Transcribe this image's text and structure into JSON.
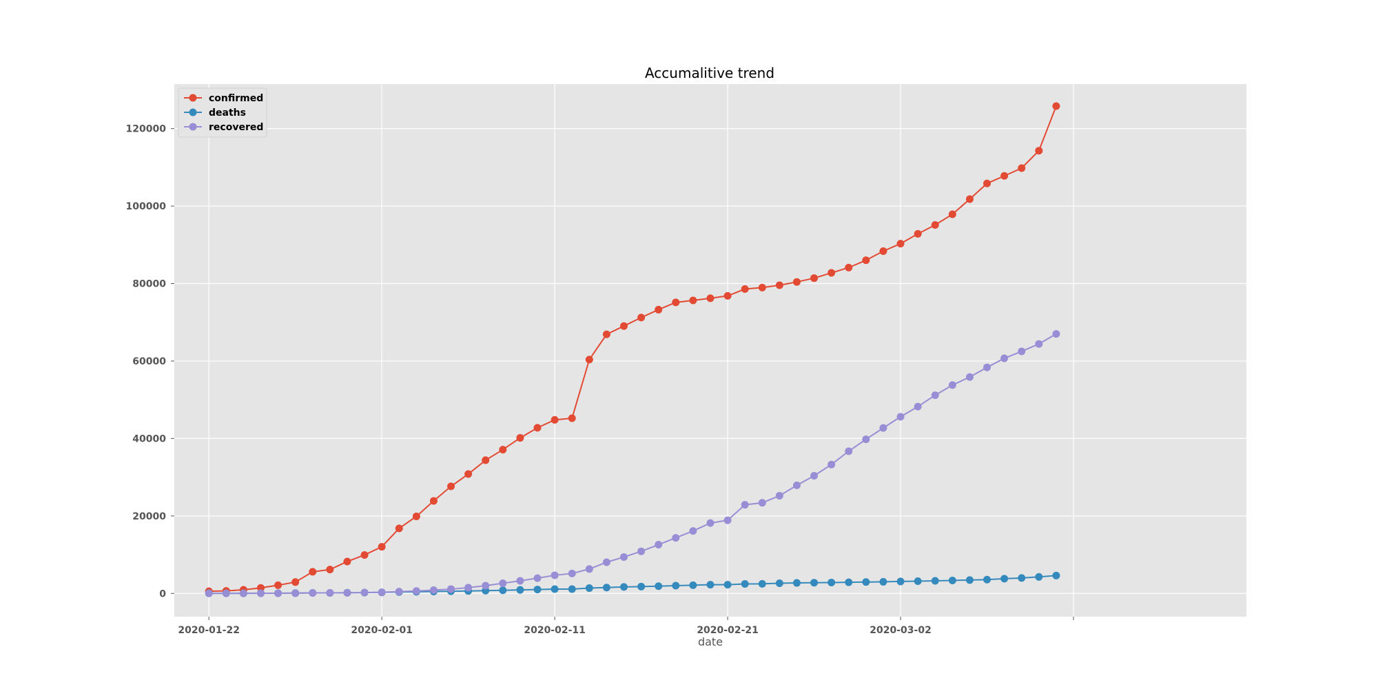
{
  "chart_data": {
    "type": "line",
    "title": "Accumalitive trend",
    "xlabel": "date",
    "ylabel": "",
    "x_start": "2020-01-22",
    "x_ticks": [
      "2020-01-22",
      "2020-02-01",
      "2020-02-11",
      "2020-02-21",
      "2020-03-02"
    ],
    "y_ticks": [
      0,
      20000,
      40000,
      60000,
      80000,
      100000,
      120000
    ],
    "xlim": [
      "2020-01-20",
      "2020-03-22"
    ],
    "ylim": [
      -6000,
      131500
    ],
    "grid": true,
    "legend_position": "top-left",
    "x": [
      "2020-01-22",
      "2020-01-23",
      "2020-01-24",
      "2020-01-25",
      "2020-01-26",
      "2020-01-27",
      "2020-01-28",
      "2020-01-29",
      "2020-01-30",
      "2020-01-31",
      "2020-02-01",
      "2020-02-02",
      "2020-02-03",
      "2020-02-04",
      "2020-02-05",
      "2020-02-06",
      "2020-02-07",
      "2020-02-08",
      "2020-02-09",
      "2020-02-10",
      "2020-02-11",
      "2020-02-12",
      "2020-02-13",
      "2020-02-14",
      "2020-02-15",
      "2020-02-16",
      "2020-02-17",
      "2020-02-18",
      "2020-02-19",
      "2020-02-20",
      "2020-02-21",
      "2020-02-22",
      "2020-02-23",
      "2020-02-24",
      "2020-02-25",
      "2020-02-26",
      "2020-02-27",
      "2020-02-28",
      "2020-02-29",
      "2020-03-01",
      "2020-03-02",
      "2020-03-03",
      "2020-03-04",
      "2020-03-05",
      "2020-03-06",
      "2020-03-07",
      "2020-03-08",
      "2020-03-09",
      "2020-03-10",
      "2020-03-11"
    ],
    "series": [
      {
        "name": "confirmed",
        "color": "#E24A33",
        "values": [
          555,
          654,
          941,
          1434,
          2118,
          2927,
          5578,
          6166,
          8234,
          9927,
          12038,
          16787,
          19881,
          23892,
          27635,
          30817,
          34391,
          37120,
          40150,
          42762,
          44802,
          45221,
          60368,
          66885,
          69030,
          71224,
          73258,
          75136,
          75639,
          76197,
          76823,
          78579,
          78965,
          79568,
          80413,
          81395,
          82754,
          84120,
          86011,
          88369,
          90306,
          92840,
          95120,
          97886,
          101800,
          105836,
          107800,
          109800,
          114300,
          125800
        ]
      },
      {
        "name": "deaths",
        "color": "#348ABD",
        "values": [
          17,
          18,
          26,
          42,
          56,
          82,
          131,
          133,
          171,
          213,
          259,
          362,
          426,
          492,
          564,
          634,
          719,
          806,
          906,
          1013,
          1113,
          1118,
          1371,
          1523,
          1666,
          1770,
          1868,
          2007,
          2122,
          2247,
          2251,
          2458,
          2469,
          2629,
          2708,
          2770,
          2814,
          2872,
          2941,
          2996,
          3085,
          3160,
          3254,
          3348,
          3460,
          3558,
          3802,
          3988,
          4262,
          4615
        ]
      },
      {
        "name": "recovered",
        "color": "#988ED5",
        "values": [
          28,
          30,
          36,
          39,
          52,
          61,
          107,
          126,
          143,
          222,
          284,
          472,
          623,
          852,
          1124,
          1487,
          2011,
          2616,
          3244,
          3946,
          4683,
          5150,
          6295,
          8058,
          9395,
          10865,
          12583,
          14352,
          16121,
          18177,
          18890,
          22886,
          23394,
          25227,
          27905,
          30384,
          33277,
          36711,
          39782,
          42716,
          45602,
          48228,
          51170,
          53796,
          55865,
          58359,
          60694,
          62494,
          64404,
          67003
        ]
      }
    ]
  }
}
